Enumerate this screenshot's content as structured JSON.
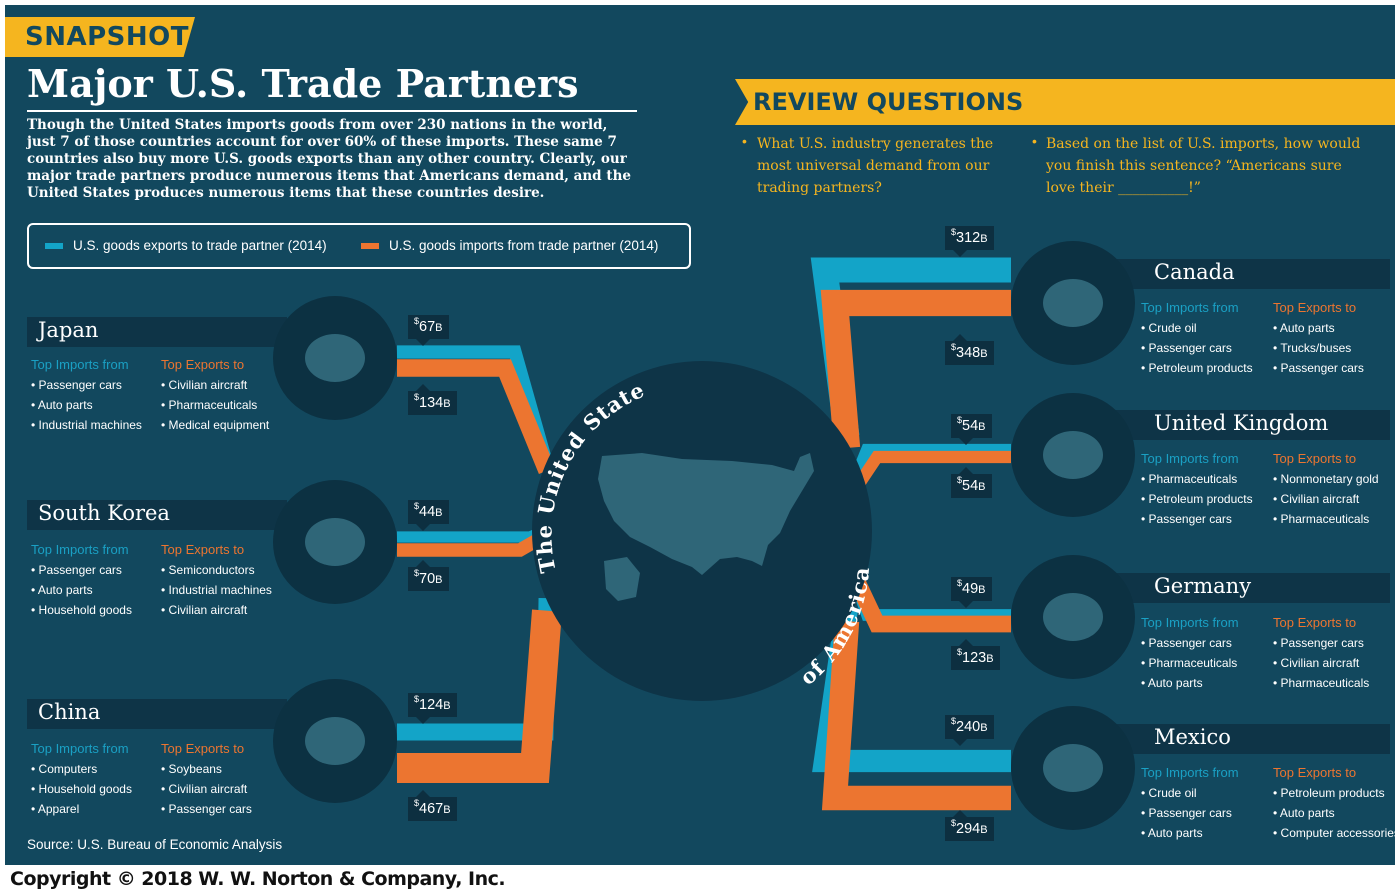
{
  "header": {
    "tab_label": "SNAPSHOT",
    "title": "Major U.S. Trade Partners"
  },
  "intro": {
    "lines": [
      "Though the United States imports goods from over 230 nations in the world,",
      "just 7 of those countries account for over 60% of these imports. These same 7",
      "countries also buy more U.S. goods exports than any other country. Clearly, our",
      "major trade partners produce numerous items that Americans demand, and the",
      "United States produces numerous items that these countries desire."
    ]
  },
  "legend": {
    "exports_label": "U.S. goods exports to trade partner (2014)",
    "imports_label": "U.S. goods imports from trade partner (2014)"
  },
  "colors": {
    "exports": "#13a4c8",
    "imports": "#ec7530",
    "background": "#12485e",
    "accent": "#f5b51f"
  },
  "review": {
    "title": "REVIEW QUESTIONS",
    "q1_lines": [
      "What U.S. industry generates the",
      "most universal demand from our",
      "trading partners?"
    ],
    "q2_lines": [
      "Based on the list of U.S. imports, how would",
      "you finish this sentence? “Americans sure",
      "love their __________!”"
    ]
  },
  "center": {
    "line1": "The United States",
    "line2": "of America"
  },
  "labels": {
    "imports_from": "Top Imports from",
    "exports_to": "Top Exports to",
    "unit_prefix": "$",
    "unit_suffix": "B"
  },
  "chart_data": {
    "type": "bar",
    "title": "Major U.S. Trade Partners",
    "unit": "billions of U.S. dollars",
    "categories": [
      "Japan",
      "South Korea",
      "China",
      "Canada",
      "United Kingdom",
      "Germany",
      "Mexico"
    ],
    "series": [
      {
        "name": "U.S. goods exports to trade partner (2014)",
        "values": [
          67,
          44,
          124,
          312,
          54,
          49,
          240
        ]
      },
      {
        "name": "U.S. goods imports from trade partner (2014)",
        "values": [
          134,
          70,
          467,
          348,
          54,
          123,
          294
        ]
      }
    ]
  },
  "countries": [
    {
      "name": "Japan",
      "exports": "67",
      "imports": "134",
      "top_imports": [
        "Passenger cars",
        "Auto parts",
        "Industrial machines"
      ],
      "top_exports": [
        "Civilian aircraft",
        "Pharmaceuticals",
        "Medical equipment"
      ]
    },
    {
      "name": "South Korea",
      "exports": "44",
      "imports": "70",
      "top_imports": [
        "Passenger cars",
        "Auto parts",
        "Household goods"
      ],
      "top_exports": [
        "Semiconductors",
        "Industrial machines",
        "Civilian aircraft"
      ]
    },
    {
      "name": "China",
      "exports": "124",
      "imports": "467",
      "top_imports": [
        "Computers",
        "Household goods",
        "Apparel"
      ],
      "top_exports": [
        "Soybeans",
        "Civilian aircraft",
        "Passenger cars"
      ]
    },
    {
      "name": "Canada",
      "exports": "312",
      "imports": "348",
      "top_imports": [
        "Crude oil",
        "Passenger cars",
        "Petroleum products"
      ],
      "top_exports": [
        "Auto parts",
        "Trucks/buses",
        "Passenger cars"
      ]
    },
    {
      "name": "United Kingdom",
      "exports": "54",
      "imports": "54",
      "top_imports": [
        "Pharmaceuticals",
        "Petroleum products",
        "Passenger cars"
      ],
      "top_exports": [
        "Nonmonetary gold",
        "Civilian aircraft",
        "Pharmaceuticals"
      ]
    },
    {
      "name": "Germany",
      "exports": "49",
      "imports": "123",
      "top_imports": [
        "Passenger cars",
        "Pharmaceuticals",
        "Auto parts"
      ],
      "top_exports": [
        "Passenger cars",
        "Civilian aircraft",
        "Pharmaceuticals"
      ]
    },
    {
      "name": "Mexico",
      "exports": "240",
      "imports": "294",
      "top_imports": [
        "Crude oil",
        "Passenger cars",
        "Auto parts"
      ],
      "top_exports": [
        "Petroleum products",
        "Auto parts",
        "Computer accessories"
      ]
    }
  ],
  "footer": {
    "source": "Source:  U.S. Bureau of Economic Analysis",
    "copyright": "Copyright © 2018 W. W. Norton & Company, Inc."
  }
}
